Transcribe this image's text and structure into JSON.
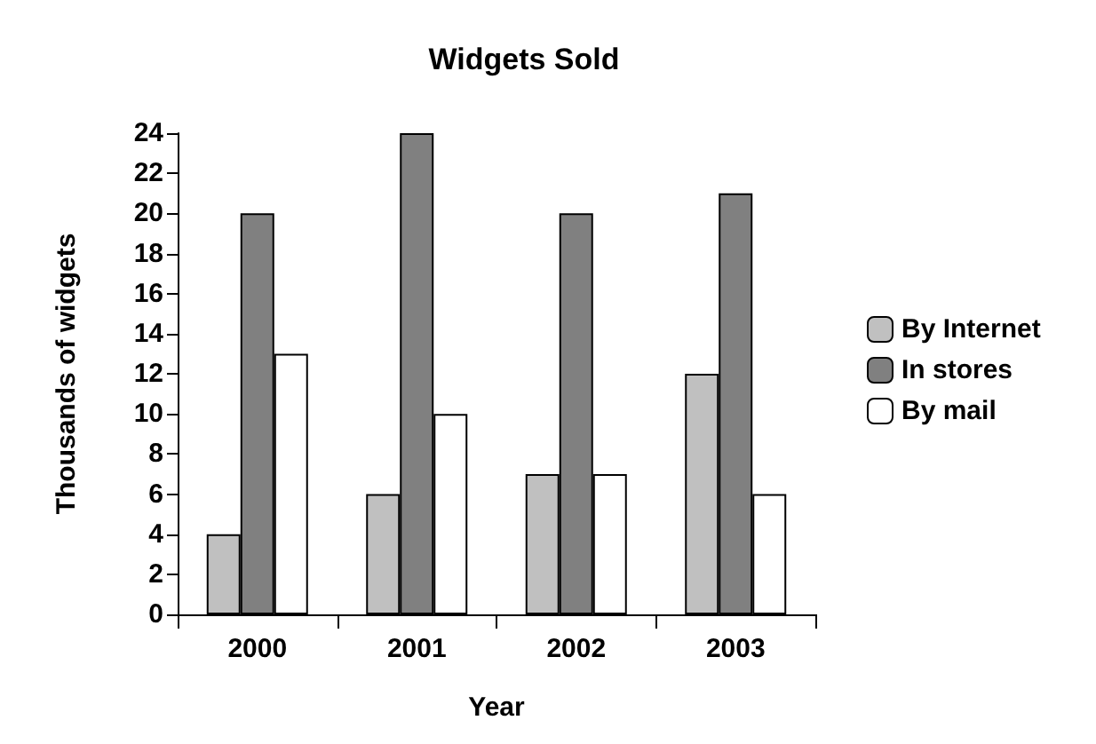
{
  "chart_data": {
    "type": "bar",
    "title": "Widgets Sold",
    "xlabel": "Year",
    "ylabel": "Thousands of widgets",
    "categories": [
      "2000",
      "2001",
      "2002",
      "2003"
    ],
    "series": [
      {
        "name": "By Internet",
        "color": "#c0c0c0",
        "values": [
          4,
          6,
          7,
          12
        ]
      },
      {
        "name": "In stores",
        "color": "#808080",
        "values": [
          20,
          24,
          20,
          21
        ]
      },
      {
        "name": "By mail",
        "color": "#ffffff",
        "values": [
          13,
          10,
          7,
          6
        ]
      }
    ],
    "ylim": [
      0,
      24
    ],
    "yticks": [
      0,
      2,
      4,
      6,
      8,
      10,
      12,
      14,
      16,
      18,
      20,
      22,
      24
    ],
    "grid": false,
    "legend": "right"
  }
}
